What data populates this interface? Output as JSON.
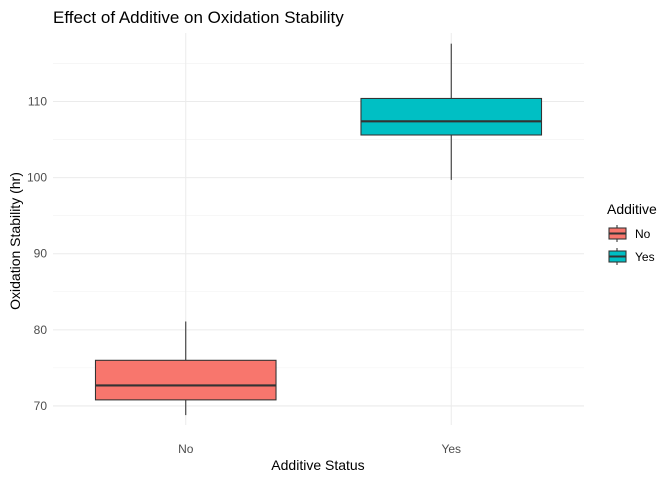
{
  "chart_data": {
    "type": "boxplot",
    "title": "Effect of Additive on Oxidation Stability",
    "xlabel": "Additive Status",
    "ylabel": "Oxidation Stability (hr)",
    "categories": [
      "No",
      "Yes"
    ],
    "ylim": [
      67.5,
      119
    ],
    "yticks": [
      70,
      80,
      90,
      100,
      110
    ],
    "y_minor_ticks": [
      75,
      85,
      95,
      105,
      115
    ],
    "grid": true,
    "legend": {
      "title": "Additive",
      "position": "right",
      "entries": [
        {
          "label": "No",
          "color": "#F8766D"
        },
        {
          "label": "Yes",
          "color": "#00BFC4"
        }
      ]
    },
    "series": [
      {
        "category": "No",
        "color": "#F8766D",
        "whisker_low": 68.8,
        "q1": 70.8,
        "median": 72.7,
        "q3": 76.0,
        "whisker_high": 81.1
      },
      {
        "category": "Yes",
        "color": "#00BFC4",
        "whisker_low": 99.7,
        "q1": 105.6,
        "median": 107.4,
        "q3": 110.4,
        "whisker_high": 117.6
      }
    ]
  }
}
